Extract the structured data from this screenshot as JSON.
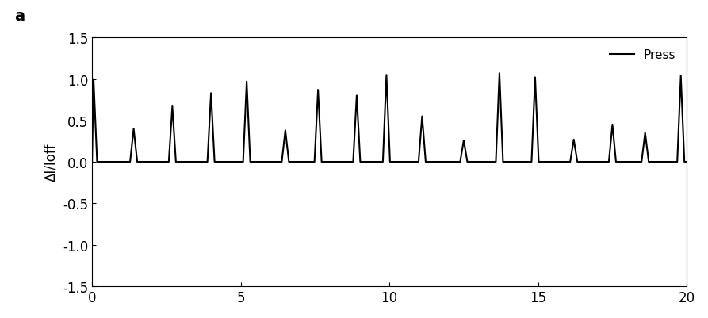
{
  "chart_data": {
    "type": "line",
    "ylabel": "ΔI/Ioff",
    "annotations": [
      "a"
    ],
    "x": [
      0.0,
      0.05,
      0.17,
      1.28,
      1.4,
      1.52,
      2.58,
      2.7,
      2.82,
      3.88,
      4.0,
      4.12,
      5.08,
      5.2,
      5.32,
      6.38,
      6.5,
      6.62,
      7.48,
      7.6,
      7.72,
      8.78,
      8.9,
      9.02,
      9.78,
      9.9,
      10.02,
      10.98,
      11.1,
      11.22,
      12.38,
      12.5,
      12.62,
      13.58,
      13.7,
      13.82,
      14.78,
      14.9,
      15.02,
      16.08,
      16.2,
      16.32,
      17.38,
      17.5,
      17.62,
      18.48,
      18.6,
      18.72,
      19.68,
      19.8,
      19.92,
      20.0
    ],
    "series": [
      {
        "name": "Press",
        "color": "#000000",
        "line_style": "solid",
        "values": [
          0.0,
          1.0,
          0.0,
          0.0,
          0.4,
          0.0,
          0.0,
          0.67,
          0.0,
          0.0,
          0.83,
          0.0,
          0.0,
          0.97,
          0.0,
          0.0,
          0.38,
          0.0,
          0.0,
          0.87,
          0.0,
          0.0,
          0.8,
          0.0,
          0.0,
          1.05,
          0.0,
          0.0,
          0.55,
          0.0,
          0.0,
          0.26,
          0.0,
          0.0,
          1.07,
          0.0,
          0.0,
          1.02,
          0.0,
          0.0,
          0.27,
          0.0,
          0.0,
          0.45,
          0.0,
          0.0,
          0.35,
          0.0,
          0.0,
          1.04,
          0.0,
          0.0
        ]
      }
    ],
    "xlim": [
      0,
      20
    ],
    "xticks": [
      0,
      5,
      10,
      15,
      20
    ],
    "ylim": [
      -1.5,
      1.5
    ],
    "yticks": [
      {
        "value": -1.5,
        "label": "-1.5"
      },
      {
        "value": -1.0,
        "label": "-1.0"
      },
      {
        "value": -0.5,
        "label": "-0.5"
      },
      {
        "value": 0.0,
        "label": "0.0"
      },
      {
        "value": 0.5,
        "label": "0.5"
      },
      {
        "value": 1.0,
        "label": "1.0"
      },
      {
        "value": 1.5,
        "label": "1.5"
      }
    ],
    "legend": "upper right",
    "grid": false
  }
}
